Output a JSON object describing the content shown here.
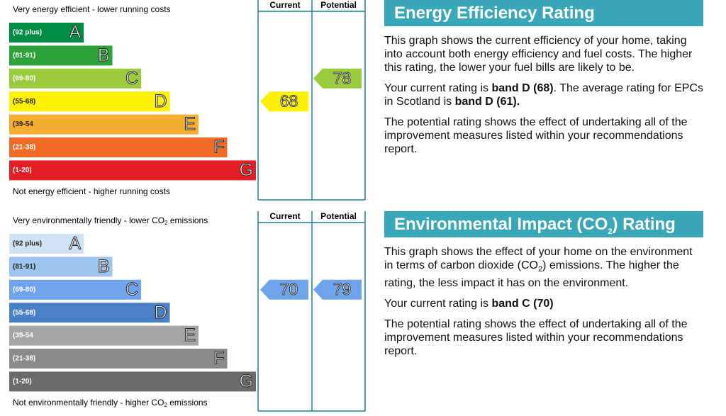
{
  "panels": [
    {
      "top_label": [
        {
          "text": "Very energy efficient - lower running costs"
        }
      ],
      "bottom_label": [
        {
          "text": "Not energy efficient - higher running costs"
        }
      ],
      "current_header": "Current",
      "potential_header": "Potential",
      "bands": [
        {
          "range": "(92 plus)",
          "letter": "A",
          "color": "#008c44"
        },
        {
          "range": "(81-91)",
          "letter": "B",
          "color": "#2ea23a"
        },
        {
          "range": "(69-80)",
          "letter": "C",
          "color": "#9acb3c"
        },
        {
          "range": "(55-68)",
          "letter": "D",
          "color": "#fff200"
        },
        {
          "range": "(39-54",
          "letter": "E",
          "color": "#f6ae2f"
        },
        {
          "range": "(21-38)",
          "letter": "F",
          "color": "#ee6a25"
        },
        {
          "range": "(1-20)",
          "letter": "G",
          "color": "#e31e24"
        }
      ],
      "current": 68,
      "potential": 78,
      "heading": [
        {
          "text": "Energy Efficiency Rating"
        }
      ],
      "paragraphs": [
        [
          {
            "text": "This graph shows the current efficiency of your home, taking into account both energy efficiency and fuel costs. The higher this rating, the lower your fuel bills are likely to be."
          }
        ],
        [
          {
            "text": "Your current rating is "
          },
          {
            "text": "band D (68)",
            "bold": true
          },
          {
            "text": ". The average rating for EPCs in Scotland is "
          },
          {
            "text": "band D (61).",
            "bold": true
          }
        ],
        [
          {
            "text": "The potential rating shows the effect of undertaking all of the improvement measures listed within your recommendations report."
          }
        ]
      ]
    },
    {
      "top_label": [
        {
          "text": "Very environmentally friendly - lower CO"
        },
        {
          "text": "2",
          "sub": true
        },
        {
          "text": " emissions"
        }
      ],
      "bottom_label": [
        {
          "text": "Not environmentally friendly - higher CO"
        },
        {
          "text": "2",
          "sub": true
        },
        {
          "text": " emissions"
        }
      ],
      "current_header": "Current",
      "potential_header": "Potential",
      "bands": [
        {
          "range": "(92 plus)",
          "letter": "A",
          "color": "#cfe3f5"
        },
        {
          "range": "(81-91)",
          "letter": "B",
          "color": "#9dc5ee"
        },
        {
          "range": "(69-80)",
          "letter": "C",
          "color": "#6fa3ec"
        },
        {
          "range": "(55-68)",
          "letter": "D",
          "color": "#4a80c8"
        },
        {
          "range": "(39-54",
          "letter": "E",
          "color": "#a5a5a5"
        },
        {
          "range": "(21-38)",
          "letter": "F",
          "color": "#8a8a8a"
        },
        {
          "range": "(1-20)",
          "letter": "G",
          "color": "#6b6b6b"
        }
      ],
      "current": 70,
      "potential": 79,
      "heading": [
        {
          "text": "Environmental Impact (CO"
        },
        {
          "text": "2",
          "sub": true
        },
        {
          "text": ") Rating"
        }
      ],
      "paragraphs": [
        [
          {
            "text": "This graph shows the effect of your home on the environment in terms of carbon dioxide (CO"
          },
          {
            "text": "2",
            "sub": true
          },
          {
            "text": ") emissions. The higher the rating, the less impact it has on the environment."
          }
        ],
        [
          {
            "text": "Your current rating is "
          },
          {
            "text": "band C (70)",
            "bold": true
          }
        ],
        [
          {
            "text": "The potential rating shows the effect of undertaking all of the improvement measures listed within your recommendations report."
          }
        ]
      ]
    }
  ]
}
